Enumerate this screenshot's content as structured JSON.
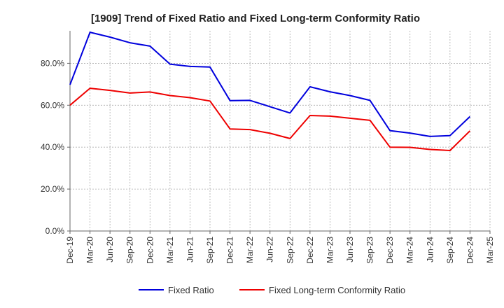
{
  "chart_data": {
    "type": "line",
    "title": "[1909]  Trend of Fixed Ratio and Fixed Long-term Conformity Ratio",
    "xlabel": "",
    "ylabel": "",
    "x": [
      "Dec-19",
      "Mar-20",
      "Jun-20",
      "Sep-20",
      "Dec-20",
      "Mar-21",
      "Jun-21",
      "Sep-21",
      "Dec-21",
      "Mar-22",
      "Jun-22",
      "Sep-22",
      "Dec-22",
      "Mar-23",
      "Jun-23",
      "Sep-23",
      "Dec-23",
      "Mar-24",
      "Jun-24",
      "Sep-24",
      "Dec-24",
      "Mar-25"
    ],
    "y_ticks": [
      "0.0%",
      "20.0%",
      "40.0%",
      "60.0%",
      "80.0%"
    ],
    "ylim": [
      0,
      95.5
    ],
    "grid": true,
    "legend_position": "bottom",
    "series": [
      {
        "name": "Fixed Ratio",
        "color": "#0000dd",
        "values": [
          69.8,
          94.8,
          92.5,
          89.8,
          88.2,
          79.6,
          78.5,
          78.2,
          62.2,
          62.3,
          59.3,
          56.3,
          68.8,
          66.4,
          64.6,
          62.3,
          47.9,
          46.7,
          45.1,
          45.5,
          54.6,
          null
        ]
      },
      {
        "name": "Fixed Long-term Conformity Ratio",
        "color": "#ee0000",
        "values": [
          60.0,
          68.1,
          67.1,
          65.8,
          66.3,
          64.6,
          63.6,
          62.0,
          48.7,
          48.4,
          46.6,
          44.1,
          55.1,
          54.8,
          53.8,
          52.8,
          40.0,
          39.9,
          38.9,
          38.4,
          47.8,
          null
        ]
      }
    ]
  }
}
